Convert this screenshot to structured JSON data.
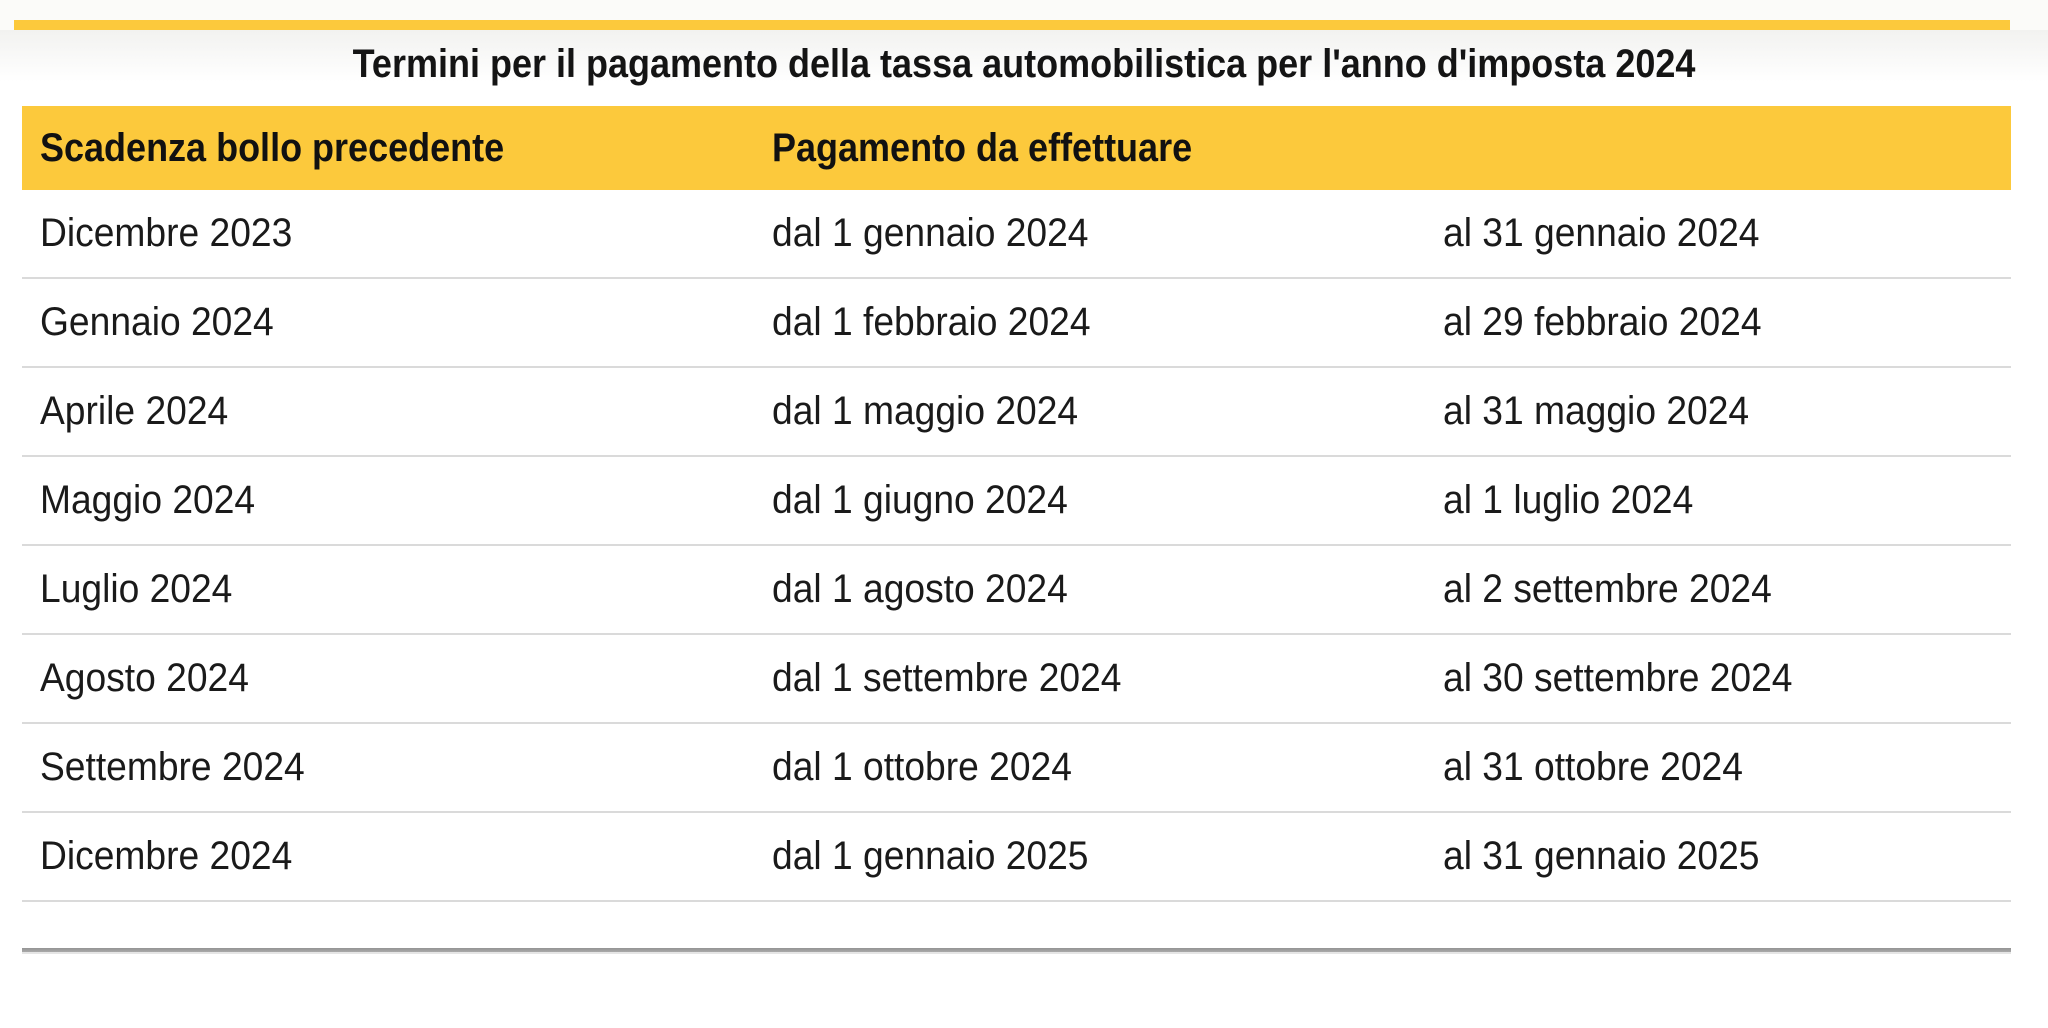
{
  "page": {
    "accent_color": "#FCC93C",
    "background_color": "#ffffff",
    "text_color": "#1a1a1a"
  },
  "title": "Termini per il pagamento della tassa automobilistica per l'anno d'imposta 2024",
  "table": {
    "headers": [
      "Scadenza bollo precedente",
      "Pagamento da effettuare"
    ],
    "rows": [
      {
        "scadenza": "Dicembre 2023",
        "dal": "dal 1 gennaio 2024",
        "al": "al 31 gennaio 2024"
      },
      {
        "scadenza": "Gennaio 2024",
        "dal": "dal 1 febbraio 2024",
        "al": "al 29 febbraio 2024"
      },
      {
        "scadenza": "Aprile 2024",
        "dal": "dal 1 maggio 2024",
        "al": "al 31 maggio 2024"
      },
      {
        "scadenza": "Maggio 2024",
        "dal": "dal 1 giugno 2024",
        "al": "al 1 luglio 2024"
      },
      {
        "scadenza": "Luglio 2024",
        "dal": "dal 1 agosto 2024",
        "al": "al 2 settembre 2024"
      },
      {
        "scadenza": "Agosto 2024",
        "dal": "dal 1 settembre 2024",
        "al": "al 30 settembre 2024"
      },
      {
        "scadenza": "Settembre 2024",
        "dal": "dal 1 ottobre 2024",
        "al": "al 31 ottobre 2024"
      },
      {
        "scadenza": "Dicembre 2024",
        "dal": "dal 1 gennaio 2025",
        "al": "al 31 gennaio 2025"
      }
    ]
  }
}
